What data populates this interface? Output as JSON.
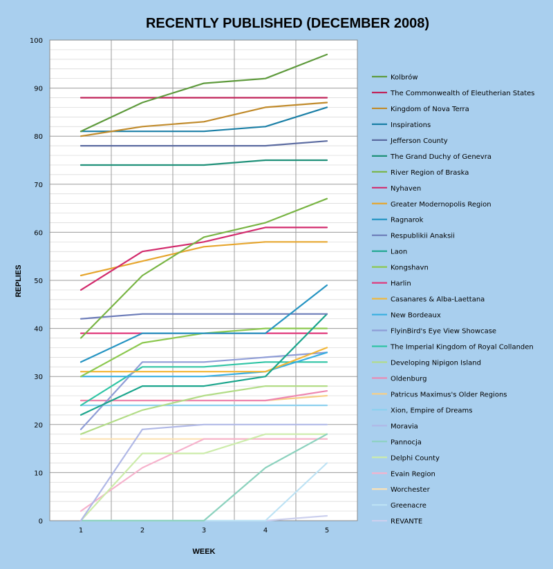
{
  "chart_data": {
    "type": "line",
    "title": "RECENTLY PUBLISHED (DECEMBER 2008)",
    "xlabel": "WEEK",
    "ylabel": "REPLIES",
    "x": [
      1,
      2,
      3,
      4,
      5
    ],
    "x_tick_labels": [
      "1",
      "2",
      "3",
      "4",
      "5"
    ],
    "ylim": [
      0,
      100
    ],
    "y_ticks": [
      0,
      10,
      20,
      30,
      40,
      50,
      60,
      70,
      80,
      90,
      100
    ],
    "grid": true,
    "legend_position": "right",
    "series": [
      {
        "name": "Kolbrów",
        "color": "#5e9a3c",
        "values": [
          81,
          87,
          91,
          92,
          97
        ]
      },
      {
        "name": "The Commonwealth of Eleutherian States",
        "color": "#c0245a",
        "values": [
          88,
          88,
          88,
          88,
          88
        ]
      },
      {
        "name": "Kingdom of Nova Terra",
        "color": "#c08a2a",
        "values": [
          80,
          82,
          83,
          86,
          87
        ]
      },
      {
        "name": "Inspirations",
        "color": "#1a7fa6",
        "values": [
          81,
          81,
          81,
          82,
          86
        ]
      },
      {
        "name": "Jefferson County",
        "color": "#5a6aa0",
        "values": [
          78,
          78,
          78,
          78,
          79
        ]
      },
      {
        "name": "The Grand Duchy of Genevra",
        "color": "#1e9078",
        "values": [
          74,
          74,
          74,
          75,
          75
        ]
      },
      {
        "name": "River Region of Braska",
        "color": "#78b443",
        "values": [
          38,
          51,
          59,
          62,
          67
        ]
      },
      {
        "name": "Nyhaven",
        "color": "#d22a6c",
        "values": [
          48,
          56,
          58,
          61,
          61
        ]
      },
      {
        "name": "Greater Modernopolis Region",
        "color": "#e6a52c",
        "values": [
          51,
          54,
          57,
          58,
          58
        ]
      },
      {
        "name": "Ragnarok",
        "color": "#2594c2",
        "values": [
          33,
          39,
          39,
          39,
          49
        ]
      },
      {
        "name": "Respublikii Anaksii",
        "color": "#6b7bb8",
        "values": [
          42,
          43,
          43,
          43,
          43
        ]
      },
      {
        "name": "Laon",
        "color": "#1aa58c",
        "values": [
          22,
          28,
          28,
          30,
          43
        ]
      },
      {
        "name": "Kongshavn",
        "color": "#8cc84f",
        "values": [
          30,
          37,
          39,
          40,
          40
        ]
      },
      {
        "name": "Harlin",
        "color": "#e03a7c",
        "values": [
          39,
          39,
          39,
          39,
          39
        ]
      },
      {
        "name": "Casanares & Alba-Laettana",
        "color": "#f2b636",
        "values": [
          31,
          31,
          31,
          31,
          36
        ]
      },
      {
        "name": "New Bordeaux",
        "color": "#36aee0",
        "values": [
          30,
          30,
          30,
          31,
          35
        ]
      },
      {
        "name": "FlyinBird's Eye View Showcase",
        "color": "#8e9cd6",
        "values": [
          19,
          33,
          33,
          34,
          35
        ]
      },
      {
        "name": "The Imperial Kingdom of Royal Collanden",
        "color": "#2ec4a4",
        "values": [
          24,
          32,
          32,
          33,
          33
        ]
      },
      {
        "name": "Developing Nipigon Island",
        "color": "#b2dc86",
        "values": [
          18,
          23,
          26,
          28,
          28
        ]
      },
      {
        "name": "Oldenburg",
        "color": "#ee86b0",
        "values": [
          25,
          25,
          25,
          25,
          27
        ]
      },
      {
        "name": "Patricus Maximus's Older Regions",
        "color": "#f7cf86",
        "values": [
          25,
          25,
          25,
          25,
          26
        ]
      },
      {
        "name": "Xion, Empire of Dreams",
        "color": "#8cd0ee",
        "values": [
          24,
          24,
          24,
          24,
          24
        ]
      },
      {
        "name": "Moravia",
        "color": "#b0b8e6",
        "values": [
          0,
          19,
          20,
          20,
          20
        ]
      },
      {
        "name": "Pannocja",
        "color": "#8cd2be",
        "values": [
          0,
          0,
          0,
          11,
          18
        ]
      },
      {
        "name": "Delphi County",
        "color": "#ccecaa",
        "values": [
          0,
          14,
          14,
          18,
          18
        ]
      },
      {
        "name": "Evain Region",
        "color": "#f6b2cc",
        "values": [
          2,
          11,
          17,
          17,
          17
        ]
      },
      {
        "name": "Worchester",
        "color": "#fce2b4",
        "values": [
          17,
          17,
          17,
          17,
          17
        ]
      },
      {
        "name": "Greenacre",
        "color": "#bce2f4",
        "values": [
          0,
          0,
          0,
          0,
          12
        ]
      },
      {
        "name": "REVANTE",
        "color": "#ccd0ee",
        "values": [
          0,
          0,
          0,
          0,
          1
        ]
      }
    ]
  }
}
